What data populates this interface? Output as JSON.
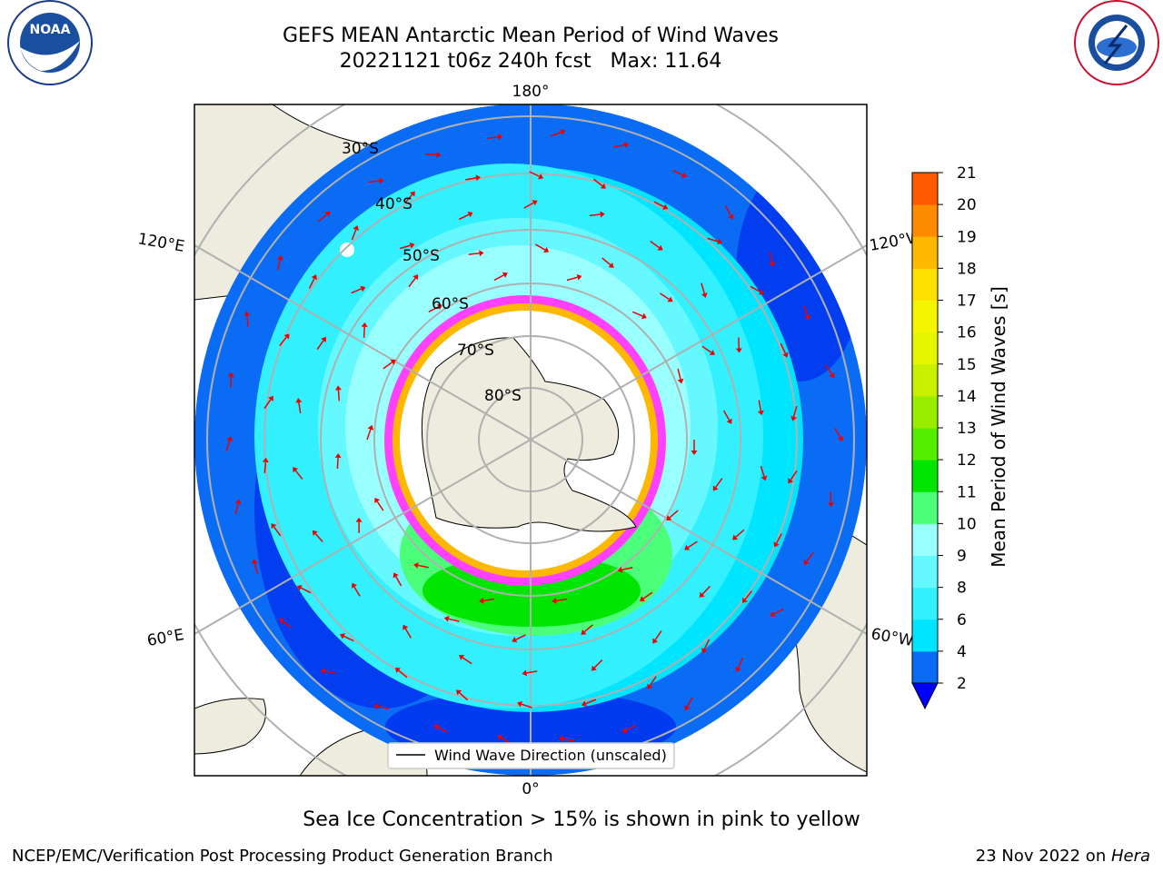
{
  "header": {
    "title_line1": "GEFS MEAN Antarctic Mean Period of Wind Waves",
    "title_line2": "20221121 t06z 240h fcst   Max: 11.64"
  },
  "logos": {
    "left": "NOAA",
    "left_ring": "NATIONAL OCEANIC AND ATMOSPHERIC ADMINISTRATION · U.S. DEPARTMENT OF COMMERCE",
    "right_ring": "NATIONAL WEATHER SERVICE"
  },
  "map": {
    "lon_labels": {
      "top": "180°",
      "bottom": "0°",
      "left_upper": "120°E",
      "left_lower": "60°E",
      "right_upper": "120°W",
      "right_lower": "60°W"
    },
    "lat_labels": [
      "30°S",
      "40°S",
      "50°S",
      "60°S",
      "70°S",
      "80°S"
    ],
    "legend_label": "Wind Wave Direction (unscaled)"
  },
  "colorbar": {
    "label": "Mean Period of Wind Waves [s]",
    "ticks": [
      "2",
      "4",
      "6",
      "8",
      "9",
      "10",
      "11",
      "12",
      "13",
      "14",
      "15",
      "16",
      "17",
      "18",
      "19",
      "20",
      "21"
    ],
    "colors": [
      "#0a6cf5",
      "#00e5ff",
      "#33f0ff",
      "#66f8ff",
      "#99ffff",
      "#4cff7a",
      "#00e600",
      "#55ee00",
      "#99ee00",
      "#c8f000",
      "#e6f500",
      "#f5f500",
      "#ffe000",
      "#ffb800",
      "#ff8c00",
      "#ff5a00",
      "#ff2a00",
      "#ff0000"
    ],
    "under_color": "#0000ff"
  },
  "subtitle": "Sea Ice Concentration > 15% is shown in pink to yellow",
  "footer": {
    "left": "NCEP/EMC/Verification Post Processing Product Generation Branch",
    "right_prefix": "23 Nov 2022 on ",
    "right_host": "Hera"
  }
}
